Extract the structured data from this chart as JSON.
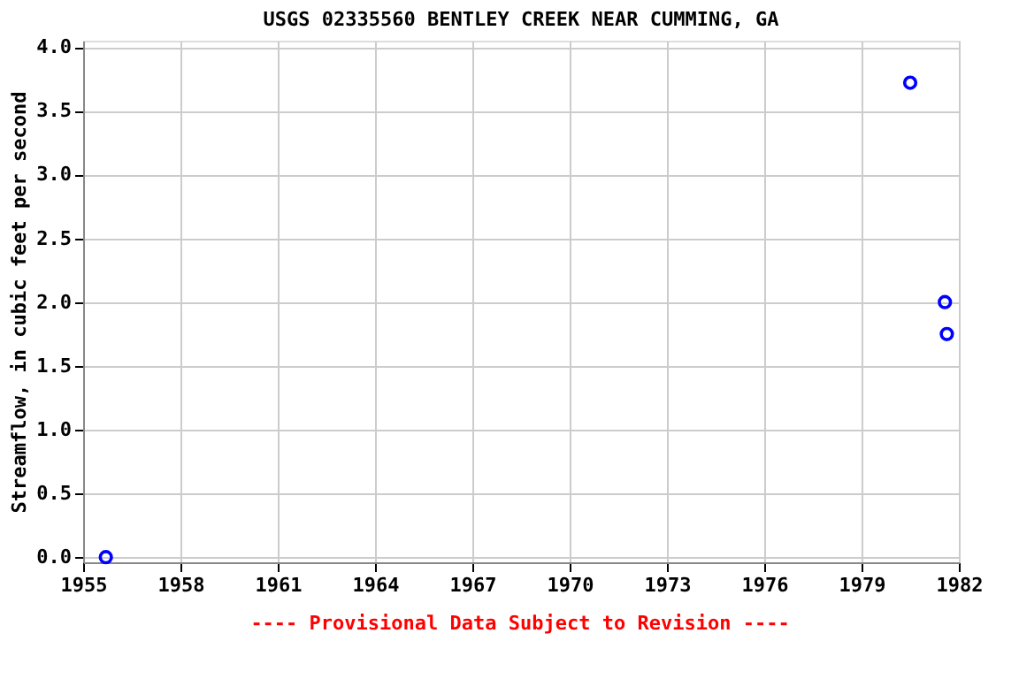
{
  "chart_data": {
    "type": "scatter",
    "title": "USGS 02335560 BENTLEY CREEK NEAR CUMMING, GA",
    "ylabel": "Streamflow, in cubic feet per second",
    "annotations": [
      "---- Provisional Data Subject to Revision ----"
    ],
    "x": [
      1955.7,
      1980.5,
      1981.57,
      1981.63
    ],
    "series": [
      {
        "color": "#0000ff",
        "values": [
          0.0,
          3.72,
          2.0,
          1.75
        ]
      }
    ],
    "xlim": [
      1955,
      1982
    ],
    "xticks": [
      1955,
      1958,
      1961,
      1964,
      1967,
      1970,
      1973,
      1976,
      1979,
      1982
    ],
    "ylim": [
      -0.04,
      4.05
    ],
    "yticks": [
      {
        "value": 0,
        "label": "0.0"
      },
      {
        "value": 0.5,
        "label": "0.5"
      },
      {
        "value": 1,
        "label": "1.0"
      },
      {
        "value": 1.5,
        "label": "1.5"
      },
      {
        "value": 2,
        "label": "2.0"
      },
      {
        "value": 2.5,
        "label": "2.5"
      },
      {
        "value": 3,
        "label": "3.0"
      },
      {
        "value": 3.5,
        "label": "3.5"
      },
      {
        "value": 4,
        "label": "4.0"
      }
    ],
    "grid": true,
    "marker": "circle"
  }
}
